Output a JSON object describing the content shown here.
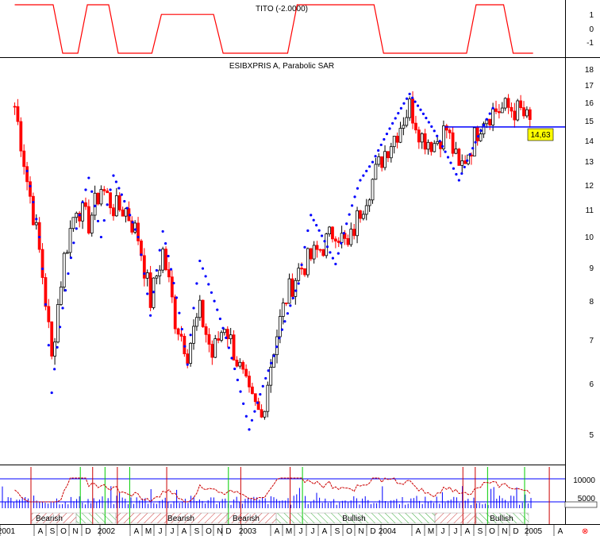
{
  "colors": {
    "background": "#ffffff",
    "up_candle": "#000000",
    "down_candle": "#ff0000",
    "sar_dots": "#0000ff",
    "resistance_line": "#0000ff",
    "price_tag_bg": "#ffff00",
    "oscillator_line": "#cc0000",
    "oscillator_bands": "#0000ff",
    "volume_bars": "#0000ff",
    "bearish_hatch": "#cc0000",
    "bullish_hatch": "#00aa00",
    "buy_marker": "#00cc00",
    "sell_marker": "#cc0000"
  },
  "indicator_panel": {
    "title": "TITO (-2.0000)",
    "y_ticks": [
      "1",
      "0",
      "-1"
    ],
    "ylim": [
      -1.5,
      1.5
    ]
  },
  "price_panel": {
    "title": "ESIBXPRIS A, Parabolic SAR",
    "y_ticks": [
      "18",
      "17",
      "16",
      "15",
      "14",
      "13",
      "12",
      "11",
      "10",
      "9",
      "8",
      "7",
      "6",
      "5"
    ],
    "price_tag": "14,63"
  },
  "volume_panel": {
    "y_ticks": [
      "10000",
      "5000"
    ]
  },
  "regimes": [
    {
      "label": "Bearish",
      "type": "bearish"
    },
    {
      "label": "Bearish",
      "type": "bearish"
    },
    {
      "label": "Bearish",
      "type": "bearish"
    },
    {
      "label": "Bullish",
      "type": "bullish"
    },
    {
      "label": "Bullish",
      "type": "bullish"
    }
  ],
  "x_axis": {
    "labels": [
      "2001",
      "A",
      "S",
      "O",
      "N",
      "D",
      "2002",
      "A",
      "M",
      "J",
      "J",
      "A",
      "S",
      "O",
      "N",
      "D",
      "2003",
      "A",
      "M",
      "J",
      "J",
      "A",
      "S",
      "O",
      "N",
      "D",
      "2004",
      "A",
      "M",
      "J",
      "J",
      "A",
      "S",
      "O",
      "N",
      "D",
      "2005",
      "A"
    ]
  },
  "chart_data": {
    "type": "candlestick",
    "title": "ESIBXPRIS A, Parabolic SAR",
    "x_start": "2001-07",
    "x_end": "2005-04",
    "y_scale": "log",
    "ylim": [
      4.7,
      18.5
    ],
    "last_price": 14.63,
    "resistance_level": 14.7,
    "price_path": [
      [
        "2001-07",
        15.8
      ],
      [
        "2001-08",
        12.2
      ],
      [
        "2001-09",
        9.5
      ],
      [
        "2001-10",
        6.5
      ],
      [
        "2001-11",
        9.3
      ],
      [
        "2001-12",
        11.2
      ],
      [
        "2002-01",
        10.5
      ],
      [
        "2002-02",
        11.9
      ],
      [
        "2002-03",
        11.1
      ],
      [
        "2002-04",
        11.0
      ],
      [
        "2002-05",
        10.0
      ],
      [
        "2002-06",
        8.0
      ],
      [
        "2002-07",
        9.5
      ],
      [
        "2002-08",
        7.5
      ],
      [
        "2002-09",
        6.7
      ],
      [
        "2002-10",
        7.7
      ],
      [
        "2002-11",
        6.6
      ],
      [
        "2002-12",
        7.4
      ],
      [
        "2003-01",
        6.5
      ],
      [
        "2003-02",
        5.7
      ],
      [
        "2003-03",
        5.3
      ],
      [
        "2003-04",
        6.8
      ],
      [
        "2003-05",
        8.1
      ],
      [
        "2003-06",
        8.9
      ],
      [
        "2003-07",
        9.3
      ],
      [
        "2003-08",
        9.7
      ],
      [
        "2003-09",
        10.3
      ],
      [
        "2003-10",
        9.6
      ],
      [
        "2003-11",
        11.0
      ],
      [
        "2003-12",
        12.2
      ],
      [
        "2004-01",
        13.5
      ],
      [
        "2004-02",
        14.5
      ],
      [
        "2004-03",
        15.8
      ],
      [
        "2004-04",
        14.2
      ],
      [
        "2004-05",
        13.9
      ],
      [
        "2004-06",
        14.6
      ],
      [
        "2004-07",
        12.6
      ],
      [
        "2004-08",
        13.8
      ],
      [
        "2004-09",
        15.3
      ],
      [
        "2004-10",
        15.6
      ],
      [
        "2004-11",
        15.7
      ],
      [
        "2004-12",
        15.5
      ],
      [
        "2005-01",
        14.63
      ]
    ],
    "sar_path": [
      [
        "2001-08",
        12.6
      ],
      [
        "2001-09",
        10.0
      ],
      [
        "2001-10",
        5.8
      ],
      [
        "2001-12",
        10.3
      ],
      [
        "2002-01",
        12.3
      ],
      [
        "2002-02",
        10.0
      ],
      [
        "2002-03",
        12.4
      ],
      [
        "2002-05",
        10.0
      ],
      [
        "2002-06",
        7.6
      ],
      [
        "2002-07",
        10.2
      ],
      [
        "2002-09",
        6.4
      ],
      [
        "2002-10",
        9.2
      ],
      [
        "2003-02",
        5.1
      ],
      [
        "2003-04",
        6.6
      ],
      [
        "2003-06",
        8.5
      ],
      [
        "2003-07",
        10.8
      ],
      [
        "2003-09",
        9.1
      ],
      [
        "2003-11",
        12.2
      ],
      [
        "2003-12",
        13.0
      ],
      [
        "2004-03",
        16.5
      ],
      [
        "2004-05",
        14.5
      ],
      [
        "2004-07",
        12.2
      ],
      [
        "2004-09",
        14.8
      ],
      [
        "2004-10",
        16.0
      ]
    ],
    "indicator_path": [
      [
        "2001-07",
        1
      ],
      [
        "2001-09",
        1
      ],
      [
        "2001-12",
        -1.5
      ],
      [
        "2002-01",
        1
      ],
      [
        "2002-05",
        -1.5
      ],
      [
        "2002-08",
        0.5
      ],
      [
        "2003-03",
        -1.5
      ],
      [
        "2003-08",
        1
      ],
      [
        "2004-05",
        -1.5
      ],
      [
        "2004-07",
        -1.5
      ],
      [
        "2004-09",
        1
      ],
      [
        "2005-01",
        -1.5
      ]
    ],
    "volume_ticks": [
      10000,
      5000
    ]
  }
}
